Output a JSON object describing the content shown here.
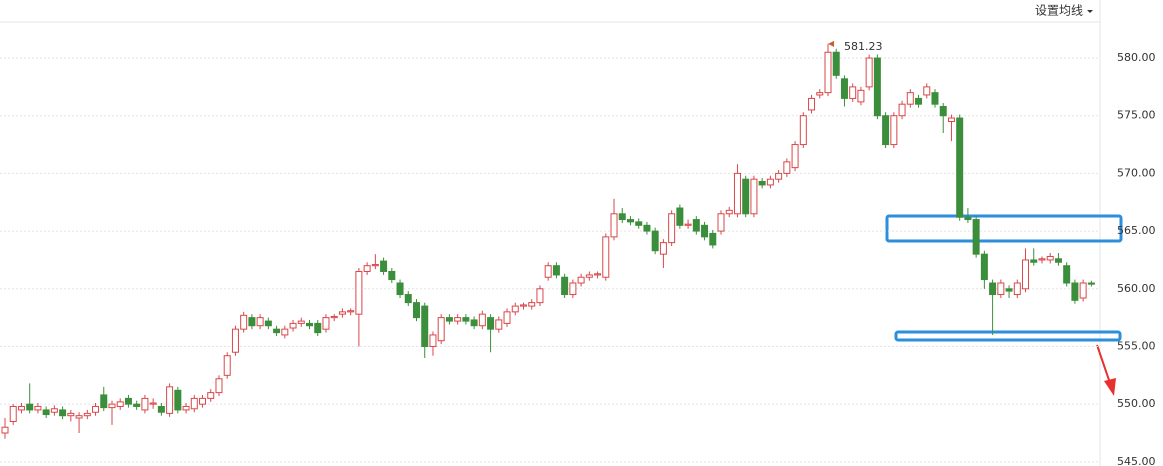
{
  "chart_data": {
    "type": "candlestick",
    "button": "设置均线",
    "up_color": "#d9474a",
    "down_color": "#3b8e3b",
    "ylim": [
      544.64,
      585.03
    ],
    "yticks": [
      {
        "value": 545,
        "label": "545.00"
      },
      {
        "value": 550,
        "label": "550.00"
      },
      {
        "value": 555,
        "label": "555.00"
      },
      {
        "value": 560,
        "label": "560.00"
      },
      {
        "value": 565,
        "label": "565.00"
      },
      {
        "value": 570,
        "label": "570.00"
      },
      {
        "value": 575,
        "label": "575.00"
      },
      {
        "value": 580,
        "label": "580.00"
      }
    ],
    "high_label": {
      "index": 100,
      "value": 581.23,
      "label": "581.23"
    },
    "ohlc": [
      [
        547.5,
        548.8,
        547,
        548
      ],
      [
        548.5,
        550,
        548.2,
        549.8
      ],
      [
        549.5,
        550.1,
        549.2,
        549.8
      ],
      [
        550,
        551.8,
        549.2,
        549.5
      ],
      [
        549.5,
        550.1,
        549.2,
        549.8
      ],
      [
        549.5,
        549.8,
        548.8,
        549.1
      ],
      [
        549.3,
        549.9,
        549,
        549.6
      ],
      [
        549.5,
        549.8,
        548.7,
        549
      ],
      [
        549,
        549.5,
        548.5,
        549.2
      ],
      [
        548.8,
        549.3,
        547.5,
        549
      ],
      [
        549,
        549.5,
        548.7,
        549.2
      ],
      [
        549.3,
        550.1,
        549,
        549.8
      ],
      [
        550.8,
        551.5,
        549.4,
        549.7
      ],
      [
        549.7,
        550.3,
        548.2,
        550
      ],
      [
        549.8,
        550.5,
        549.5,
        550.2
      ],
      [
        550.5,
        550.8,
        549.7,
        550
      ],
      [
        550,
        550.3,
        549.5,
        549.8
      ],
      [
        549.5,
        550.8,
        549.2,
        550.5
      ],
      [
        550,
        550.5,
        549.6,
        550.1
      ],
      [
        549.8,
        550.1,
        549,
        549.3
      ],
      [
        549.2,
        551.8,
        548.9,
        551.5
      ],
      [
        551.2,
        551.5,
        549.2,
        549.5
      ],
      [
        549.5,
        550.1,
        549.2,
        549.8
      ],
      [
        549.6,
        550.8,
        549.3,
        550.5
      ],
      [
        550,
        550.8,
        549.7,
        550.5
      ],
      [
        550.5,
        551.3,
        550.2,
        551
      ],
      [
        551,
        552.5,
        550.7,
        552.2
      ],
      [
        552.5,
        554.5,
        552.2,
        554.2
      ],
      [
        554.5,
        556.8,
        554.2,
        556.5
      ],
      [
        556.5,
        558,
        556.2,
        557.7
      ],
      [
        557.5,
        557.8,
        556.5,
        556.8
      ],
      [
        556.8,
        557.8,
        556.5,
        557.5
      ],
      [
        557.2,
        557.5,
        556.5,
        556.8
      ],
      [
        556.5,
        556.8,
        555.9,
        556.2
      ],
      [
        556,
        556.8,
        555.7,
        556.5
      ],
      [
        556.6,
        557.3,
        556.3,
        557
      ],
      [
        557,
        557.5,
        556.7,
        557.2
      ],
      [
        557,
        557.3,
        556.5,
        556.8
      ],
      [
        557,
        557.3,
        555.9,
        556.2
      ],
      [
        556.5,
        557.8,
        556.2,
        557.5
      ],
      [
        557.5,
        557.8,
        557.2,
        557.6
      ],
      [
        557.8,
        558.3,
        557.5,
        558
      ],
      [
        558,
        558.3,
        557.7,
        558.1
      ],
      [
        557.8,
        561.8,
        555,
        561.5
      ],
      [
        561.5,
        562.3,
        561.2,
        562
      ],
      [
        562,
        563,
        561.7,
        562.1
      ],
      [
        562.4,
        562.7,
        561.2,
        561.5
      ],
      [
        561.5,
        561.8,
        560.5,
        560.8
      ],
      [
        560.5,
        560.8,
        559.2,
        559.5
      ],
      [
        559.5,
        559.8,
        558.5,
        558.8
      ],
      [
        558.8,
        559.1,
        557.2,
        557.5
      ],
      [
        558.5,
        558.8,
        554,
        555
      ],
      [
        555,
        556.3,
        554.2,
        556
      ],
      [
        555.5,
        557.8,
        555.2,
        557.5
      ],
      [
        557.5,
        557.8,
        556.9,
        557.2
      ],
      [
        557.2,
        557.8,
        556.9,
        557.5
      ],
      [
        557.5,
        557.8,
        556.9,
        557.2
      ],
      [
        557.3,
        557.6,
        556.5,
        556.8
      ],
      [
        556.8,
        558.1,
        556.5,
        557.8
      ],
      [
        557.5,
        557.8,
        554.5,
        556.5
      ],
      [
        556.5,
        557.6,
        556.2,
        557.3
      ],
      [
        557,
        558.3,
        556.7,
        558
      ],
      [
        558,
        558.8,
        557.7,
        558.5
      ],
      [
        558.5,
        558.8,
        558.2,
        558.6
      ],
      [
        558.5,
        559.1,
        558.2,
        558.8
      ],
      [
        558.8,
        560.3,
        558.5,
        560
      ],
      [
        561,
        562.3,
        560.7,
        562
      ],
      [
        562,
        562.3,
        560.9,
        561.2
      ],
      [
        561,
        561.3,
        559.2,
        559.5
      ],
      [
        559.5,
        560.8,
        559.2,
        560.5
      ],
      [
        560.5,
        561.3,
        560.2,
        561
      ],
      [
        561,
        561.5,
        560.7,
        561.2
      ],
      [
        561.2,
        561.5,
        560.9,
        561.3
      ],
      [
        561,
        564.8,
        560.7,
        564.5
      ],
      [
        564.5,
        567.8,
        564.2,
        566.5
      ],
      [
        566.5,
        567,
        565.7,
        566
      ],
      [
        566,
        566.3,
        565.5,
        565.8
      ],
      [
        565.8,
        566.1,
        565.2,
        565.5
      ],
      [
        565.5,
        565.8,
        564.7,
        565
      ],
      [
        565,
        565.3,
        563,
        563.3
      ],
      [
        563,
        564.3,
        561.8,
        564
      ],
      [
        564,
        566.8,
        563.7,
        566.5
      ],
      [
        567,
        567.3,
        565.2,
        565.5
      ],
      [
        565.5,
        566,
        565.2,
        565.6
      ],
      [
        566,
        566.3,
        564.7,
        565
      ],
      [
        565.5,
        565.8,
        564.2,
        564.5
      ],
      [
        564.8,
        565.1,
        563.5,
        563.8
      ],
      [
        565,
        566.8,
        564.7,
        566.5
      ],
      [
        566.5,
        567.1,
        566.2,
        566.8
      ],
      [
        566.5,
        570.8,
        566.2,
        570
      ],
      [
        569.5,
        569.8,
        566.2,
        566.5
      ],
      [
        566.5,
        569.8,
        566.2,
        569.5
      ],
      [
        569.3,
        569.6,
        568.7,
        569
      ],
      [
        569,
        569.8,
        568.7,
        569.5
      ],
      [
        569.5,
        570.3,
        569.2,
        570
      ],
      [
        570,
        571.3,
        569.7,
        571
      ],
      [
        570.5,
        572.8,
        570.2,
        572.5
      ],
      [
        572.5,
        575.3,
        572.2,
        575
      ],
      [
        575.5,
        576.8,
        575.2,
        576.5
      ],
      [
        576.8,
        577.3,
        576.5,
        577
      ],
      [
        577,
        581.23,
        576.7,
        580.5
      ],
      [
        580.5,
        580.8,
        578.2,
        578.5
      ],
      [
        578.2,
        578.5,
        575.8,
        576.5
      ],
      [
        576.5,
        577.8,
        576.2,
        577.5
      ],
      [
        576.2,
        577.5,
        575.9,
        577.2
      ],
      [
        577.5,
        580.3,
        577.2,
        580
      ],
      [
        580,
        580.3,
        574.7,
        575
      ],
      [
        575,
        575.3,
        572.2,
        572.5
      ],
      [
        572.5,
        575.3,
        572.2,
        575
      ],
      [
        575,
        576.3,
        574.7,
        576
      ],
      [
        576,
        577.3,
        575.7,
        577
      ],
      [
        576.5,
        576.8,
        575.7,
        576
      ],
      [
        576.8,
        577.8,
        576.5,
        577.5
      ],
      [
        577,
        577.3,
        575.7,
        576
      ],
      [
        575.8,
        576.1,
        573.5,
        575
      ],
      [
        574.5,
        575.1,
        572.8,
        574.8
      ],
      [
        574.8,
        575.1,
        565.9,
        566.2
      ],
      [
        566.2,
        567,
        565.7,
        566
      ],
      [
        566,
        566.3,
        562.7,
        563
      ],
      [
        563,
        563.3,
        560,
        560.8
      ],
      [
        560.5,
        560.8,
        556,
        559.5
      ],
      [
        559.5,
        560.8,
        559.2,
        560.5
      ],
      [
        560,
        560.3,
        559.2,
        559.8
      ],
      [
        559.5,
        560.8,
        559.2,
        560.5
      ],
      [
        560,
        563.5,
        559.7,
        562.5
      ],
      [
        562.5,
        563.5,
        562,
        562.3
      ],
      [
        562.5,
        562.8,
        562.2,
        562.6
      ],
      [
        562.5,
        563.1,
        562.2,
        562.8
      ],
      [
        562.6,
        563.1,
        562,
        562.3
      ],
      [
        562,
        562.3,
        560.2,
        560.5
      ],
      [
        560.5,
        560.8,
        558.7,
        559
      ],
      [
        559.2,
        560.8,
        558.9,
        560.5
      ],
      [
        560.5,
        560.7,
        560.2,
        560.4
      ]
    ]
  }
}
